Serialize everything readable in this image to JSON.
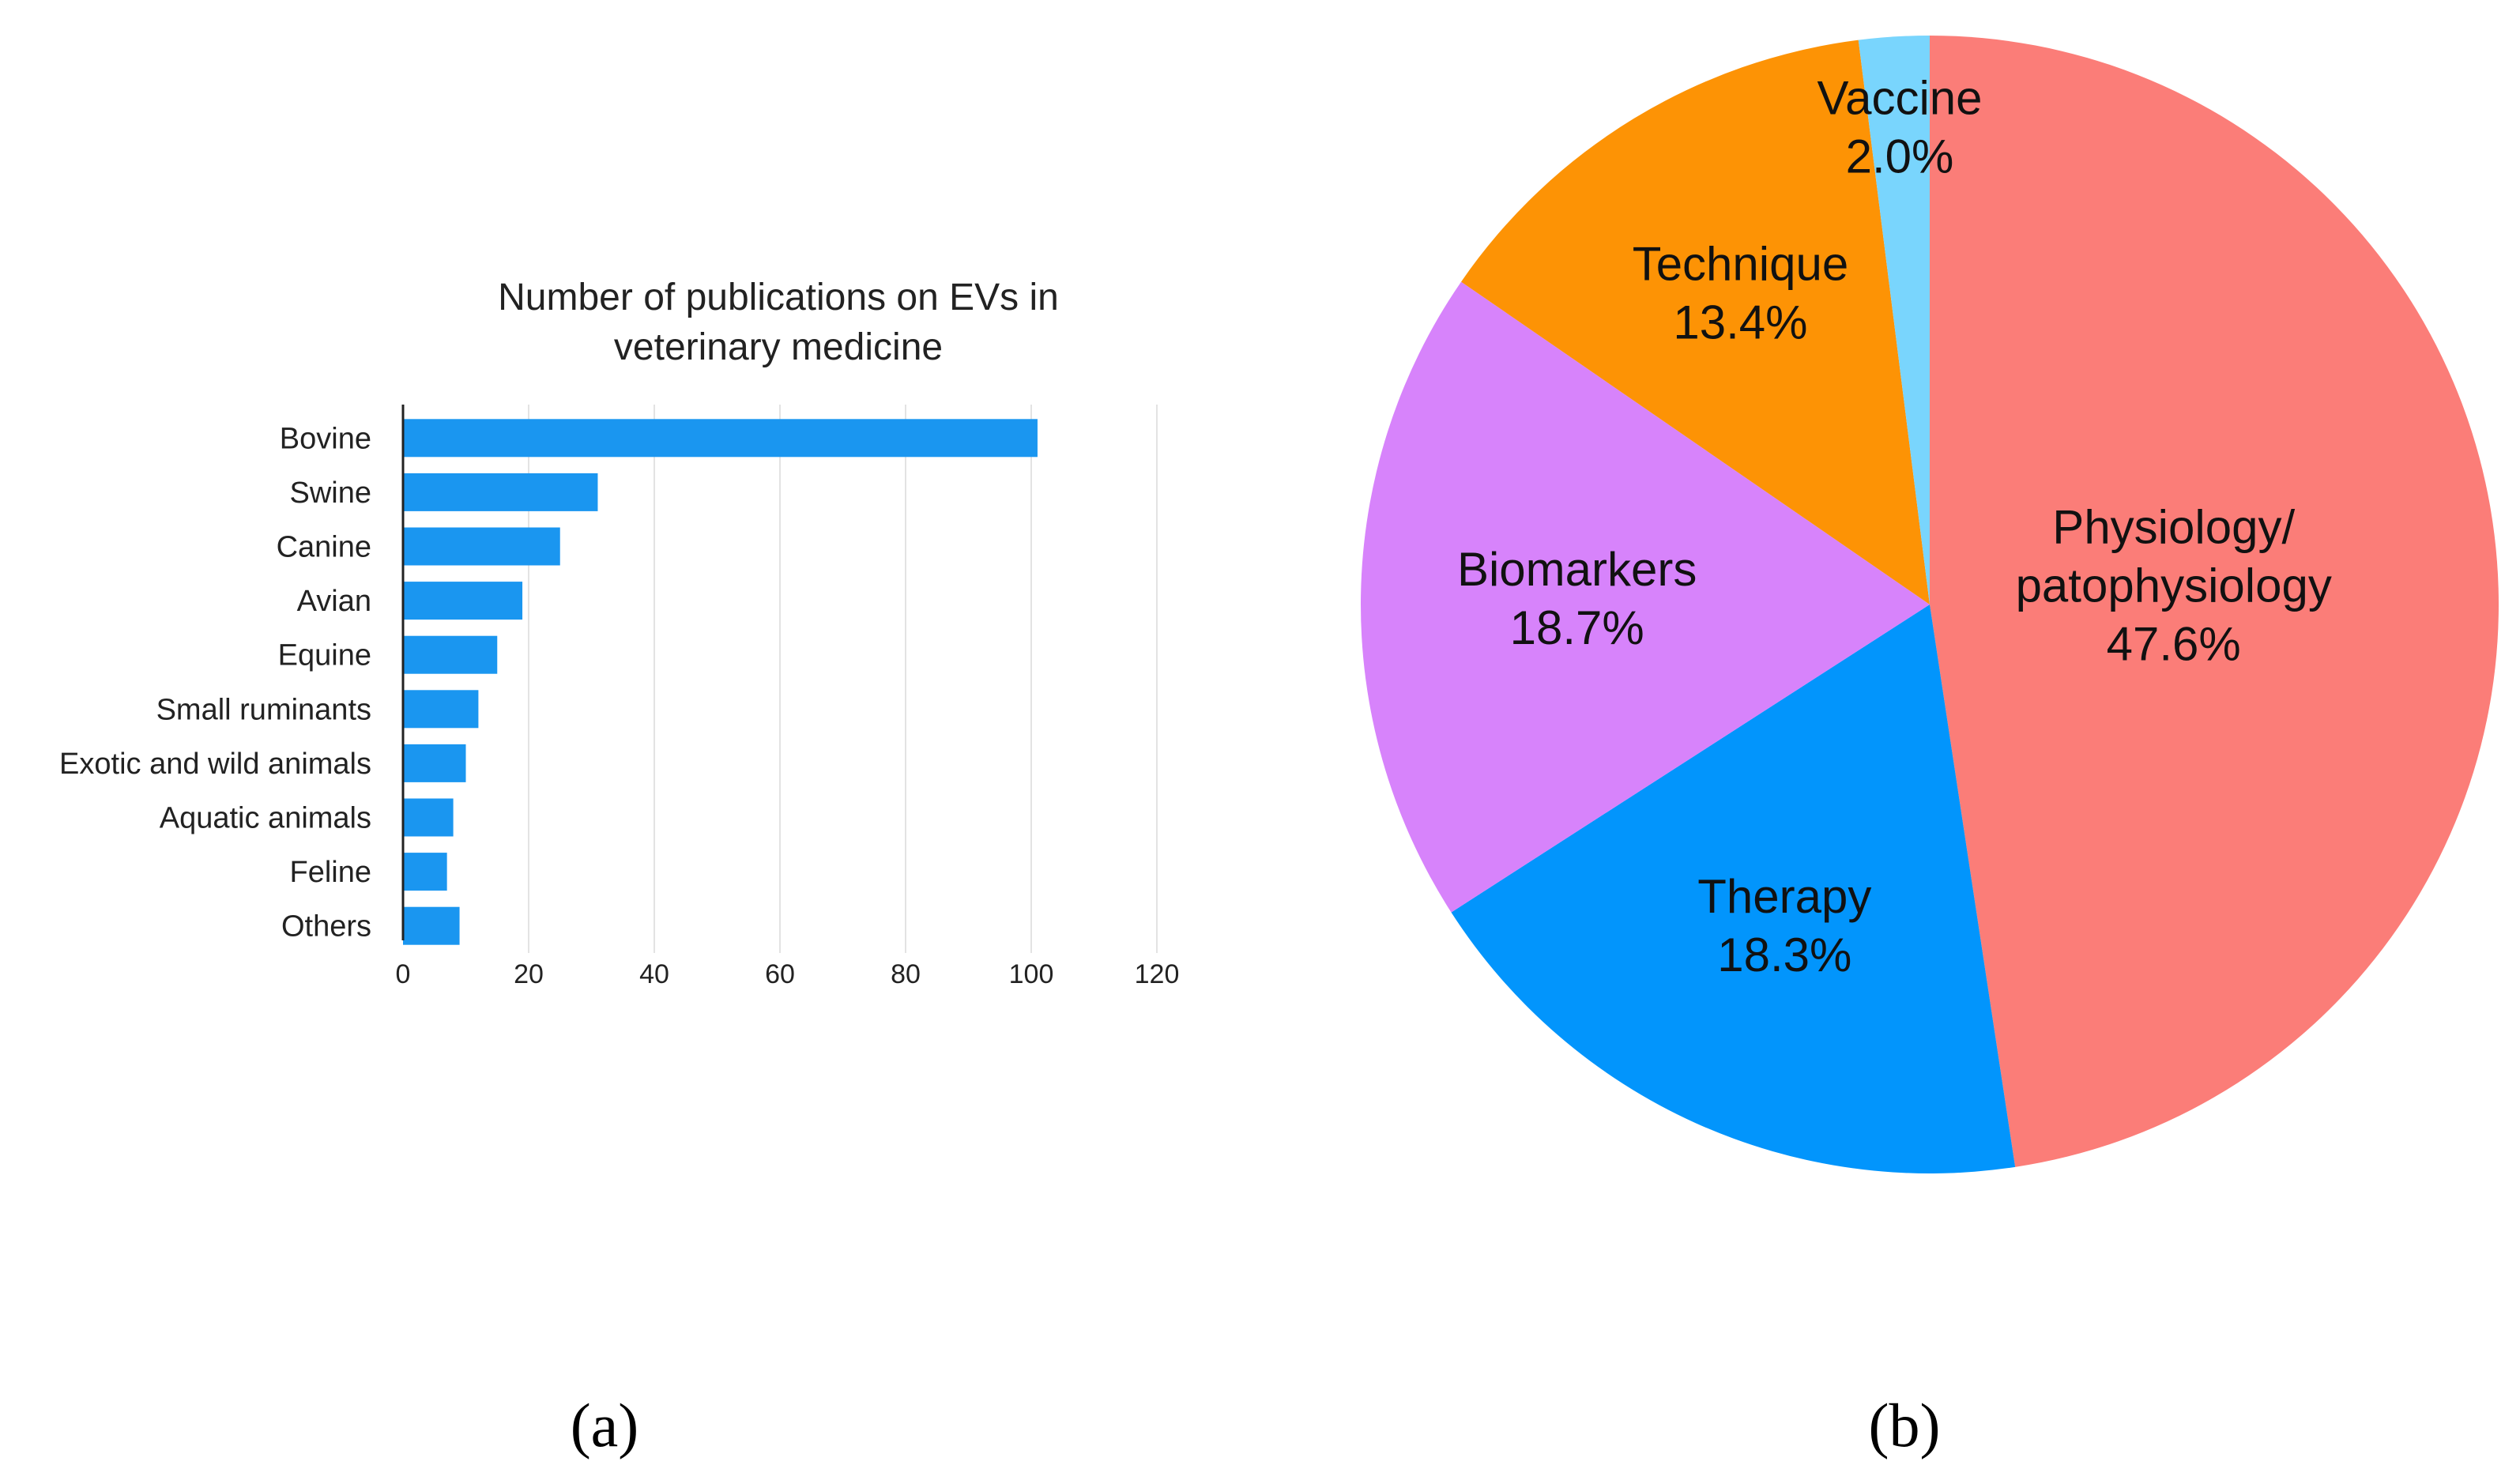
{
  "chart_data": [
    {
      "type": "bar",
      "orientation": "horizontal",
      "title": "Number of publications on EVs in veterinary medicine",
      "title_lines": [
        "Number of publications on EVs in",
        "veterinary medicine"
      ],
      "categories": [
        "Bovine",
        "Swine",
        "Canine",
        "Avian",
        "Equine",
        "Small ruminants",
        "Exotic and wild animals",
        "Aquatic animals",
        "Feline",
        "Others"
      ],
      "values": [
        101,
        31,
        25,
        19,
        15,
        12,
        10,
        8,
        7,
        9
      ],
      "xlim": [
        0,
        120
      ],
      "xticks": [
        0,
        20,
        40,
        60,
        80,
        100,
        120
      ],
      "grid": true,
      "bar_color": "#1a96f0",
      "panel_label": "(a)"
    },
    {
      "type": "pie",
      "slices": [
        {
          "label": "Physiology/ patophysiology",
          "label_lines": [
            "Physiology/",
            "patophysiology"
          ],
          "value": 47.6,
          "display": "47.6%",
          "color": "#fb7d78"
        },
        {
          "label": "Therapy",
          "label_lines": [
            "Therapy"
          ],
          "value": 18.3,
          "display": "18.3%",
          "color": "#0295fc"
        },
        {
          "label": "Biomarkers",
          "label_lines": [
            "Biomarkers"
          ],
          "value": 18.7,
          "display": "18.7%",
          "color": "#d783fb"
        },
        {
          "label": "Technique",
          "label_lines": [
            "Technique"
          ],
          "value": 13.4,
          "display": "13.4%",
          "color": "#fd9305"
        },
        {
          "label": "Vaccine",
          "label_lines": [
            "Vaccine"
          ],
          "value": 2.0,
          "display": "2.0%",
          "color": "#79d5fd"
        }
      ],
      "start": "12 o'clock",
      "direction": "clockwise",
      "panel_label": "(b)"
    }
  ]
}
